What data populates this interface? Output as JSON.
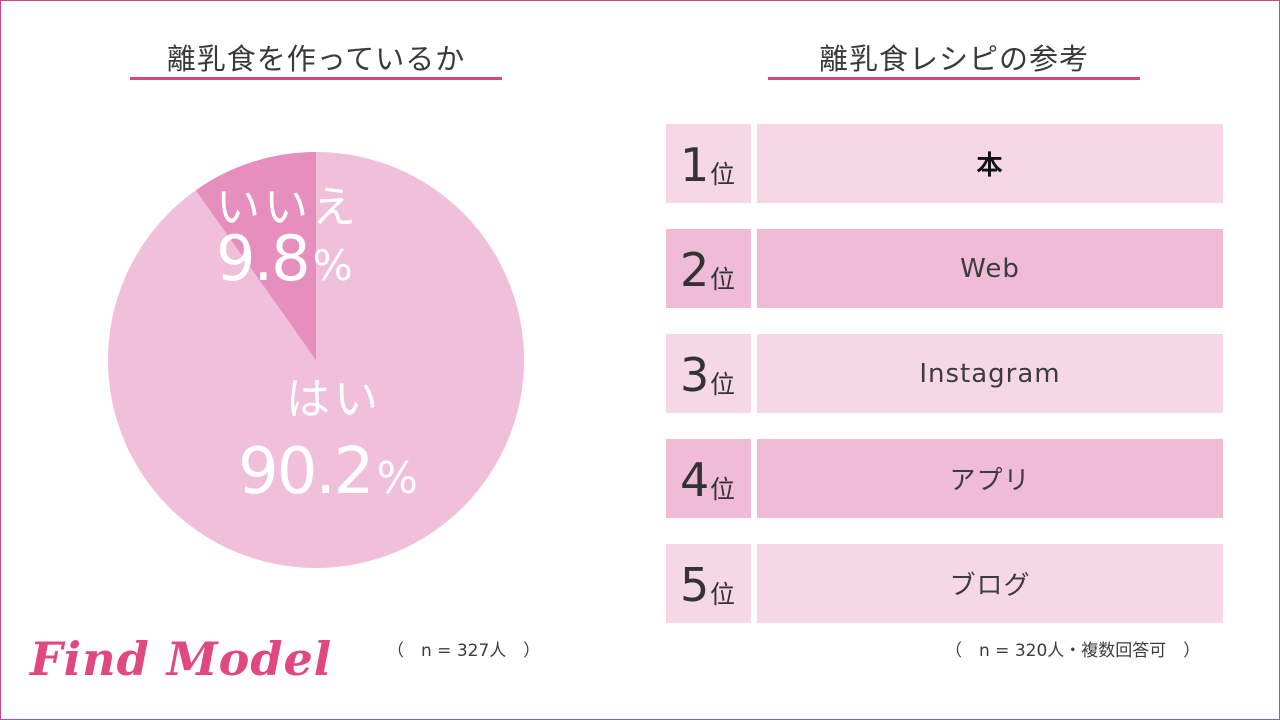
{
  "colors": {
    "accent": "#d9457e",
    "pie_yes": "#f0bfd9",
    "pie_no": "#e68fbe",
    "row_light": "#f6d7e6",
    "row_dark": "#f0bbd7",
    "logo": "#e0487f"
  },
  "left": {
    "title": "離乳食を作っているか",
    "note": "（　n = 327人　）"
  },
  "right": {
    "title": "離乳食レシピの参考",
    "note": "（　n = 320人・複数回答可　）"
  },
  "logo": "Find Model",
  "chart_data": [
    {
      "type": "pie",
      "title": "離乳食を作っているか",
      "slices": [
        {
          "label": "はい",
          "value": 90.2,
          "display": "90.2",
          "unit": "%",
          "color": "#f0bfd9"
        },
        {
          "label": "いいえ",
          "value": 9.8,
          "display": "9.8",
          "unit": "%",
          "color": "#e68fbe"
        }
      ],
      "n": "n = 327人"
    },
    {
      "type": "table",
      "title": "離乳食レシピの参考",
      "suffix": "位",
      "rows": [
        {
          "rank": "1",
          "item": "本"
        },
        {
          "rank": "2",
          "item": "Web"
        },
        {
          "rank": "3",
          "item": "Instagram"
        },
        {
          "rank": "4",
          "item": "アプリ"
        },
        {
          "rank": "5",
          "item": "ブログ"
        }
      ],
      "n": "n = 320人・複数回答可"
    }
  ]
}
